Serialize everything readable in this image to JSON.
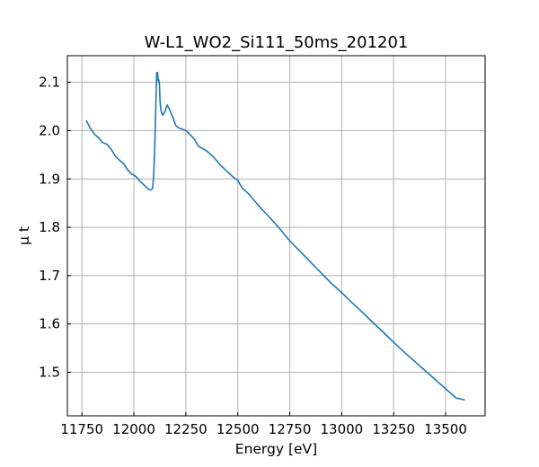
{
  "chart_data": {
    "type": "line",
    "title": "W-L1_WO2_Si111_50ms_201201",
    "xlabel": "Energy [eV]",
    "ylabel": "μ t",
    "xlim": [
      11680,
      13690
    ],
    "ylim": [
      1.41,
      2.155
    ],
    "grid": true,
    "xticks": [
      11750,
      12000,
      12250,
      12500,
      12750,
      13000,
      13250,
      13500
    ],
    "yticks": [
      1.5,
      1.6,
      1.7,
      1.8,
      1.9,
      2.0,
      2.1
    ],
    "xtick_labels": [
      "11750",
      "12000",
      "12250",
      "12500",
      "12750",
      "13000",
      "13250",
      "13500"
    ],
    "ytick_labels": [
      "1.5",
      "1.6",
      "1.7",
      "1.8",
      "1.9",
      "2.0",
      "2.1"
    ],
    "line_color": "#1f77b4",
    "series": [
      {
        "x": [
          11772,
          11790,
          11810,
          11830,
          11850,
          11870,
          11890,
          11910,
          11930,
          11950,
          11970,
          11990,
          12010,
          12030,
          12050,
          12070,
          12080,
          12090,
          12095,
          12100,
          12105,
          12110,
          12114,
          12117,
          12120,
          12123,
          12126,
          12130,
          12135,
          12140,
          12150,
          12160,
          12170,
          12180,
          12190,
          12200,
          12210,
          12220,
          12250,
          12270,
          12290,
          12310,
          12330,
          12350,
          12380,
          12400,
          12420,
          12450,
          12480,
          12500,
          12520,
          12550,
          12580,
          12610,
          12650,
          12700,
          12750,
          12800,
          12850,
          12900,
          12950,
          13000,
          13050,
          13100,
          13150,
          13200,
          13250,
          13300,
          13350,
          13400,
          13450,
          13500,
          13550,
          13590
        ],
        "y": [
          2.02,
          2.005,
          1.993,
          1.985,
          1.975,
          1.972,
          1.962,
          1.948,
          1.939,
          1.932,
          1.919,
          1.91,
          1.905,
          1.895,
          1.887,
          1.879,
          1.877,
          1.88,
          1.905,
          1.96,
          2.04,
          2.12,
          2.12,
          2.103,
          2.105,
          2.095,
          2.06,
          2.042,
          2.035,
          2.032,
          2.04,
          2.053,
          2.045,
          2.035,
          2.025,
          2.012,
          2.007,
          2.005,
          2.0,
          1.992,
          1.983,
          1.968,
          1.963,
          1.958,
          1.947,
          1.937,
          1.927,
          1.915,
          1.903,
          1.897,
          1.882,
          1.87,
          1.855,
          1.84,
          1.822,
          1.798,
          1.772,
          1.75,
          1.728,
          1.706,
          1.684,
          1.665,
          1.644,
          1.624,
          1.603,
          1.583,
          1.562,
          1.542,
          1.523,
          1.504,
          1.485,
          1.466,
          1.447,
          1.443
        ]
      }
    ]
  }
}
